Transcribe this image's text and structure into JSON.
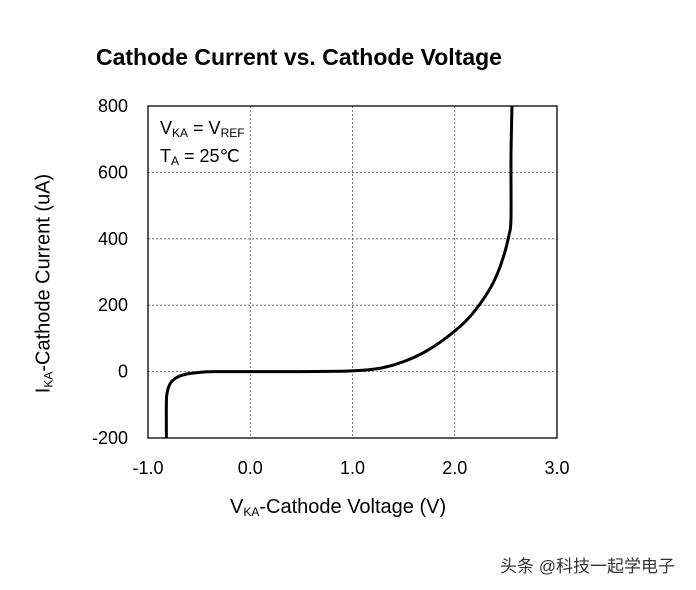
{
  "chart_data": {
    "type": "line",
    "title": "Cathode Current vs. Cathode Voltage",
    "ylabel": {
      "main": "I",
      "sub": "KA",
      "rest": "-Cathode Current (uA)"
    },
    "xlabel": {
      "main": "V",
      "sub": "KA",
      "rest": "-Cathode Voltage (V)"
    },
    "xlim": [
      -1.0,
      3.0
    ],
    "ylim": [
      -200,
      800
    ],
    "xticks": [
      -1.0,
      0.0,
      1.0,
      2.0,
      3.0
    ],
    "xtick_labels": [
      "-1.0",
      "0.0",
      "1.0",
      "2.0",
      "3.0"
    ],
    "yticks": [
      -200,
      0,
      200,
      400,
      600,
      800
    ],
    "ytick_labels": [
      "-200",
      "0",
      "200",
      "400",
      "600",
      "800"
    ],
    "grid": true,
    "annotations": [
      {
        "parts": [
          [
            "V",
            ""
          ],
          [
            "KA",
            "sub"
          ],
          [
            " = V",
            ""
          ],
          [
            "REF",
            "sub"
          ]
        ]
      },
      {
        "parts": [
          [
            "T",
            ""
          ],
          [
            "A",
            "sub"
          ],
          [
            " = 25℃",
            ""
          ]
        ]
      }
    ],
    "series": [
      {
        "color": "#000000",
        "x": [
          -0.82,
          -0.82,
          -0.81,
          -0.79,
          -0.76,
          -0.72,
          -0.67,
          -0.6,
          -0.52,
          -0.44,
          -0.35,
          0.0,
          0.5,
          0.9,
          1.1,
          1.3,
          1.5,
          1.7,
          1.9,
          2.1,
          2.25,
          2.38,
          2.47,
          2.53,
          2.55,
          2.55,
          2.56
        ],
        "y": [
          -200,
          -90,
          -60,
          -40,
          -27,
          -18,
          -11,
          -6,
          -3,
          -1,
          0,
          0,
          0,
          1,
          4,
          12,
          30,
          58,
          98,
          150,
          205,
          270,
          340,
          410,
          460,
          650,
          800
        ]
      }
    ]
  },
  "watermark": "头条 @科技一起学电子"
}
